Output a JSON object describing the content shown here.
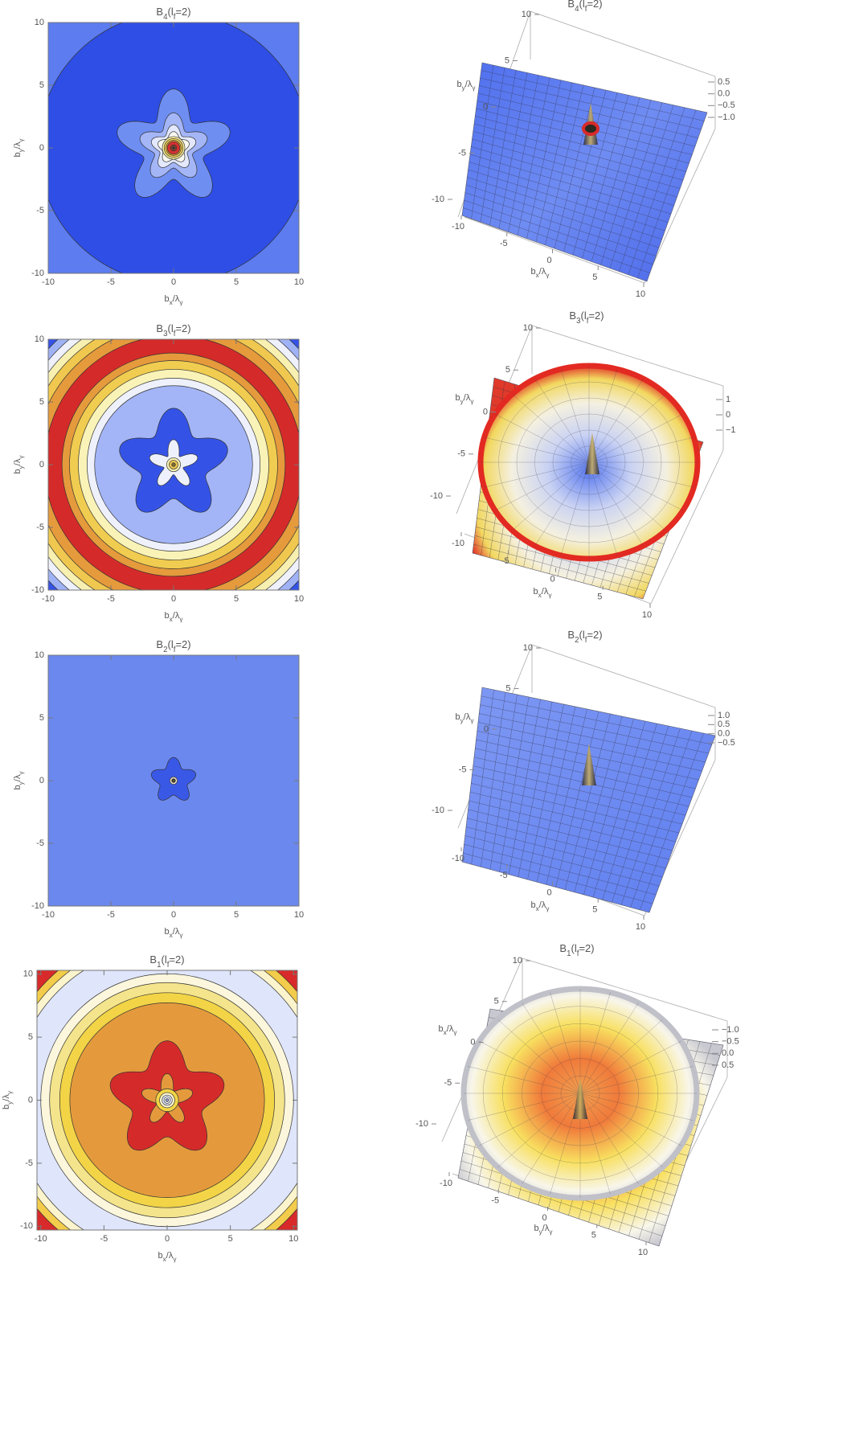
{
  "chart_data": [
    {
      "type": "contour",
      "title": [
        "B",
        "4",
        "(l",
        "f",
        "=2)"
      ],
      "xlabel": [
        "b",
        "x",
        "/λ",
        "γ"
      ],
      "ylabel": [
        "b",
        "y",
        "/λ",
        "γ"
      ],
      "xlim": [
        -10,
        10
      ],
      "ylim": [
        -10,
        10
      ],
      "xticks": [
        -10,
        -5,
        0,
        5,
        10
      ],
      "yticks": [
        -10,
        -5,
        0,
        5,
        10
      ]
    },
    {
      "type": "surface",
      "title": [
        "B",
        "4",
        "(l",
        "f",
        "=2)"
      ],
      "xlabel": [
        "b",
        "x",
        "/λ",
        "γ"
      ],
      "ylabel": [
        "b",
        "y",
        "/λ",
        "γ"
      ],
      "xlim": [
        -10,
        10
      ],
      "ylim": [
        -10,
        10
      ],
      "xticks": [
        -10,
        -5,
        0,
        5,
        10
      ],
      "yticks": [
        -10,
        -5,
        0,
        5,
        10
      ],
      "zlim": [
        -1.0,
        0.5
      ],
      "zticks": [
        {
          "value": 0.5,
          "label": "0.5"
        },
        {
          "value": 0,
          "label": "0.0"
        },
        {
          "value": -0.5,
          "label": "−0.5"
        },
        {
          "value": -1.0,
          "label": "−1.0"
        }
      ]
    },
    {
      "type": "contour",
      "title": [
        "B",
        "3",
        "(l",
        "f",
        "=2)"
      ],
      "xlabel": [
        "b",
        "x",
        "/λ",
        "γ"
      ],
      "ylabel": [
        "b",
        "y",
        "/λ",
        "γ"
      ],
      "xlim": [
        -10,
        10
      ],
      "ylim": [
        -10,
        10
      ],
      "xticks": [
        -10,
        -5,
        0,
        5,
        10
      ],
      "yticks": [
        -10,
        -5,
        0,
        5,
        10
      ]
    },
    {
      "type": "surface",
      "title": [
        "B",
        "3",
        "(l",
        "f",
        "=2)"
      ],
      "xlabel": [
        "b",
        "x",
        "/λ",
        "γ"
      ],
      "ylabel": [
        "b",
        "y",
        "/λ",
        "γ"
      ],
      "xlim": [
        -10,
        10
      ],
      "ylim": [
        -10,
        10
      ],
      "xticks": [
        -10,
        -5,
        0,
        5,
        10
      ],
      "yticks": [
        -10,
        -5,
        0,
        5,
        10
      ],
      "zlim": [
        -1,
        1
      ],
      "zticks": [
        1,
        0,
        {
          "value": -1,
          "label": "−1"
        }
      ]
    },
    {
      "type": "contour",
      "title": [
        "B",
        "2",
        "(l",
        "f",
        "=2)"
      ],
      "xlabel": [
        "b",
        "x",
        "/λ",
        "γ"
      ],
      "ylabel": [
        "b",
        "y",
        "/λ",
        "γ"
      ],
      "xlim": [
        -10,
        10
      ],
      "ylim": [
        -10,
        10
      ],
      "xticks": [
        -10,
        -5,
        0,
        5,
        10
      ],
      "yticks": [
        -10,
        -5,
        0,
        5,
        10
      ]
    },
    {
      "type": "surface",
      "title": [
        "B",
        "2",
        "(l",
        "f",
        "=2)"
      ],
      "xlabel": [
        "b",
        "x",
        "/λ",
        "γ"
      ],
      "ylabel": [
        "b",
        "y",
        "/λ",
        "γ"
      ],
      "xlim": [
        -10,
        10
      ],
      "ylim": [
        -10,
        10
      ],
      "xticks": [
        -10,
        -5,
        0,
        5,
        10
      ],
      "yticks": [
        -10,
        -5,
        0,
        5,
        10
      ],
      "zlim": [
        -0.5,
        1.0
      ],
      "zticks": [
        {
          "value": 1.0,
          "label": "1.0"
        },
        {
          "value": 0.5,
          "label": "0.5"
        },
        {
          "value": 0,
          "label": "0.0"
        },
        {
          "value": -0.5,
          "label": "−0.5"
        }
      ]
    },
    {
      "type": "contour",
      "title": [
        "B",
        "1",
        "(l",
        "f",
        "=2)"
      ],
      "xlabel": [
        "b",
        "x",
        "/λ",
        "γ"
      ],
      "ylabel": [
        "b",
        "y",
        "/λ",
        "γ"
      ],
      "xlim": [
        -10.3,
        10.3
      ],
      "ylim": [
        -10.3,
        10.3
      ],
      "xticks": [
        -10,
        -5,
        0,
        5,
        10
      ],
      "yticks": [
        -10,
        -5,
        0,
        5,
        10
      ]
    },
    {
      "type": "surface",
      "title": [
        "B",
        "1",
        "(l",
        "f",
        "=2)"
      ],
      "xlabel": [
        "b",
        "y",
        "/λ",
        "γ"
      ],
      "ylabel": [
        "b",
        "x",
        "/λ",
        "γ"
      ],
      "xlim": [
        -10,
        10
      ],
      "ylim": [
        -10,
        10
      ],
      "xticks": [
        -10,
        -5,
        0,
        5,
        10
      ],
      "yticks": [
        -10,
        -5,
        0,
        5,
        10
      ],
      "zlim": [
        -1.0,
        0.5
      ],
      "zticks": [
        {
          "value": -1.0,
          "label": "−1.0"
        },
        {
          "value": -0.5,
          "label": "−0.5"
        },
        {
          "value": 0,
          "label": "0.0"
        },
        {
          "value": 0.5,
          "label": "0.5"
        }
      ]
    }
  ]
}
